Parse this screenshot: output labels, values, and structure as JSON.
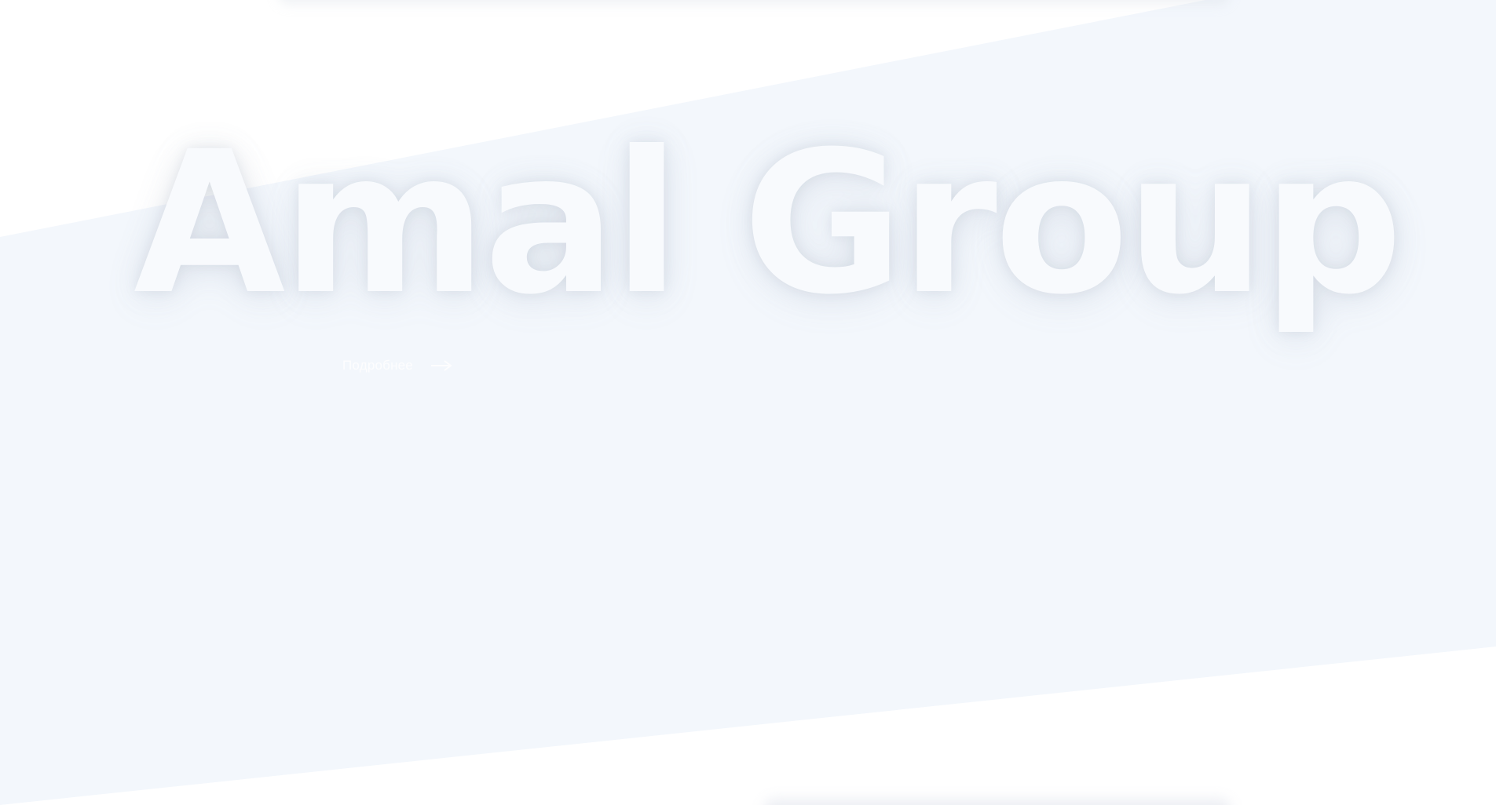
{
  "hero": {
    "title": "Amal Group",
    "more_label": "Подробнее",
    "more_icon": "arrow-right-icon"
  },
  "colors": {
    "page_background": "#ffffff",
    "band_background": "#f3f7fc",
    "title_fill": "#f8fafd",
    "link_text": "#ffffff"
  }
}
